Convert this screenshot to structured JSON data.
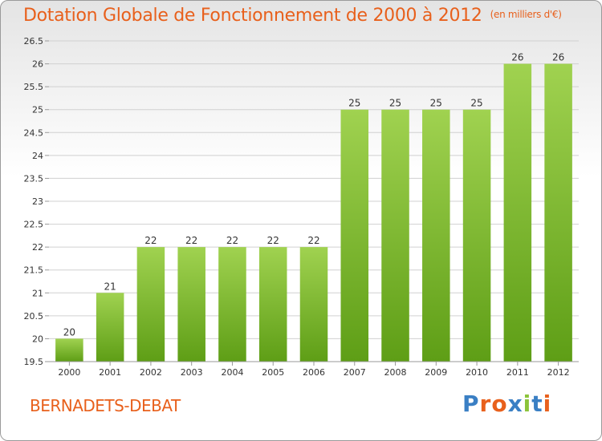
{
  "header": {
    "title": "Dotation Globale de Fonctionnement de 2000 à 2012",
    "unit": "(en milliers d'€)"
  },
  "commune": "BERNADETS-DEBAT",
  "logo": {
    "text": "Proxiti",
    "colors": [
      "#3a7fc4",
      "#e8601c",
      "#e8601c",
      "#3a7fc4",
      "#8cc43a",
      "#3a7fc4",
      "#e8601c"
    ]
  },
  "colors": {
    "accent": "#e8601c",
    "bar_top": "#a0d250",
    "bar_bottom": "#5e9e16",
    "grid": "#d0d0d0"
  },
  "chart_data": {
    "type": "bar",
    "title": "Dotation Globale de Fonctionnement de 2000 à 2012",
    "xlabel": "",
    "ylabel": "(en milliers d'€)",
    "categories": [
      "2000",
      "2001",
      "2002",
      "2003",
      "2004",
      "2005",
      "2006",
      "2007",
      "2008",
      "2009",
      "2010",
      "2011",
      "2012"
    ],
    "values": [
      20,
      21,
      22,
      22,
      22,
      22,
      22,
      25,
      25,
      25,
      25,
      26,
      26
    ],
    "data_labels": [
      "20",
      "21",
      "22",
      "22",
      "22",
      "22",
      "22",
      "25",
      "25",
      "25",
      "25",
      "26",
      "26"
    ],
    "ylim": [
      19.5,
      26.5
    ],
    "yticks": [
      19.5,
      20,
      20.5,
      21,
      21.5,
      22,
      22.5,
      23,
      23.5,
      24,
      24.5,
      25,
      25.5,
      26,
      26.5
    ],
    "ytick_labels": [
      "19.5",
      "20",
      "20.5",
      "21",
      "21.5",
      "22",
      "22.5",
      "23",
      "23.5",
      "24",
      "24.5",
      "25",
      "25.5",
      "26",
      "26.5"
    ],
    "grid": true
  }
}
